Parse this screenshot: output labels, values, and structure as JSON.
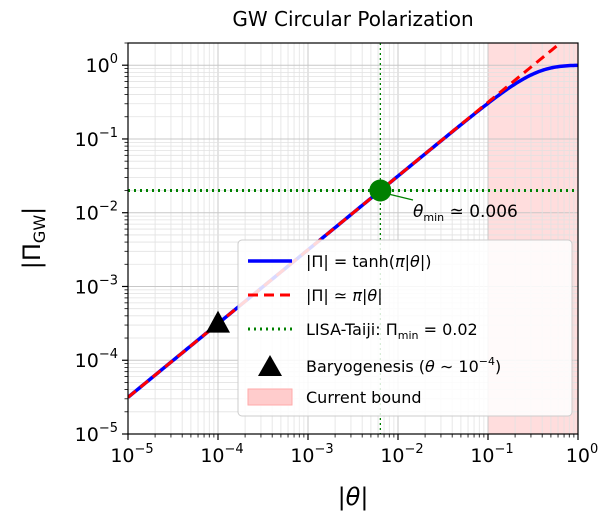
{
  "chart_data": {
    "type": "line",
    "title": "GW Circular Polarization",
    "xlabel": "|θ|",
    "ylabel": "|Π_GW|",
    "xscale": "log",
    "yscale": "log",
    "xlim": [
      1e-05,
      1
    ],
    "ylim": [
      1e-05,
      2
    ],
    "grid": "on (major and minor)",
    "legend_position": "lower-right",
    "x_ticks": [
      {
        "base": "10",
        "exp": "−5"
      },
      {
        "base": "10",
        "exp": "−4"
      },
      {
        "base": "10",
        "exp": "−3"
      },
      {
        "base": "10",
        "exp": "−2"
      },
      {
        "base": "10",
        "exp": "−1"
      },
      {
        "base": "10",
        "exp": "0"
      }
    ],
    "x_tick_values": [
      1e-05,
      0.0001,
      0.001,
      0.01,
      0.1,
      1
    ],
    "y_ticks": [
      {
        "base": "10",
        "exp": "−5"
      },
      {
        "base": "10",
        "exp": "−4"
      },
      {
        "base": "10",
        "exp": "−3"
      },
      {
        "base": "10",
        "exp": "−2"
      },
      {
        "base": "10",
        "exp": "−1"
      },
      {
        "base": "10",
        "exp": "0"
      }
    ],
    "y_tick_values": [
      1e-05,
      0.0001,
      0.001,
      0.01,
      0.1,
      1
    ],
    "series": [
      {
        "name": "|Π| = tanh(π|θ|)",
        "function": "tanh(pi*x)",
        "color": "#0000ff",
        "style": "solid"
      },
      {
        "name": "|Π| ≃ π|θ|",
        "function": "pi*x",
        "color": "#ff0000",
        "style": "dashed"
      },
      {
        "name": "LISA-Taiji: Π_min = 0.02",
        "y_constant": 0.02,
        "color": "#008000",
        "style": "dotted"
      }
    ],
    "vertical_line": {
      "x": 0.0063662,
      "color": "#008000",
      "style": "dotted"
    },
    "points": [
      {
        "name": "Baryogenesis (θ ∼ 10^−4)",
        "x": 0.0001,
        "y": 0.000314,
        "marker": "triangle",
        "color": "#000000"
      },
      {
        "name": "θ_min intersection",
        "x": 0.0063662,
        "y": 0.02,
        "marker": "circle",
        "color": "#008000"
      }
    ],
    "shaded_region": {
      "name": "Current bound",
      "x_range": [
        0.1,
        1
      ],
      "color": "#ffdddd"
    },
    "annotation": {
      "text": "θ_min ≃ 0.006",
      "target": [
        0.0063662,
        0.02
      ]
    },
    "legend": {
      "tanh": {
        "a": "|Π| = tanh(",
        "pi": "π",
        "b": "|",
        "theta": "θ",
        "c": "|)"
      },
      "approx": {
        "a": "|Π| ≃ ",
        "pi": "π",
        "b": "|",
        "theta": "θ",
        "c": "|"
      },
      "lisa": {
        "a": "LISA-Taiji: Π",
        "sub": "min",
        "b": " = 0.02"
      },
      "bary": {
        "a": "Baryogenesis (",
        "theta": "θ",
        "b": " ∼ 10",
        "sup": "−4",
        "c": ")"
      },
      "bound": "Current bound"
    },
    "annotation_parts": {
      "theta": "θ",
      "sub": "min",
      "rest": " ≃ 0.006"
    },
    "xlabel_parts": {
      "a": "|",
      "theta": "θ",
      "b": "|"
    },
    "ylabel_parts": {
      "a": "|Π",
      "sub": "GW",
      "b": "|"
    }
  }
}
